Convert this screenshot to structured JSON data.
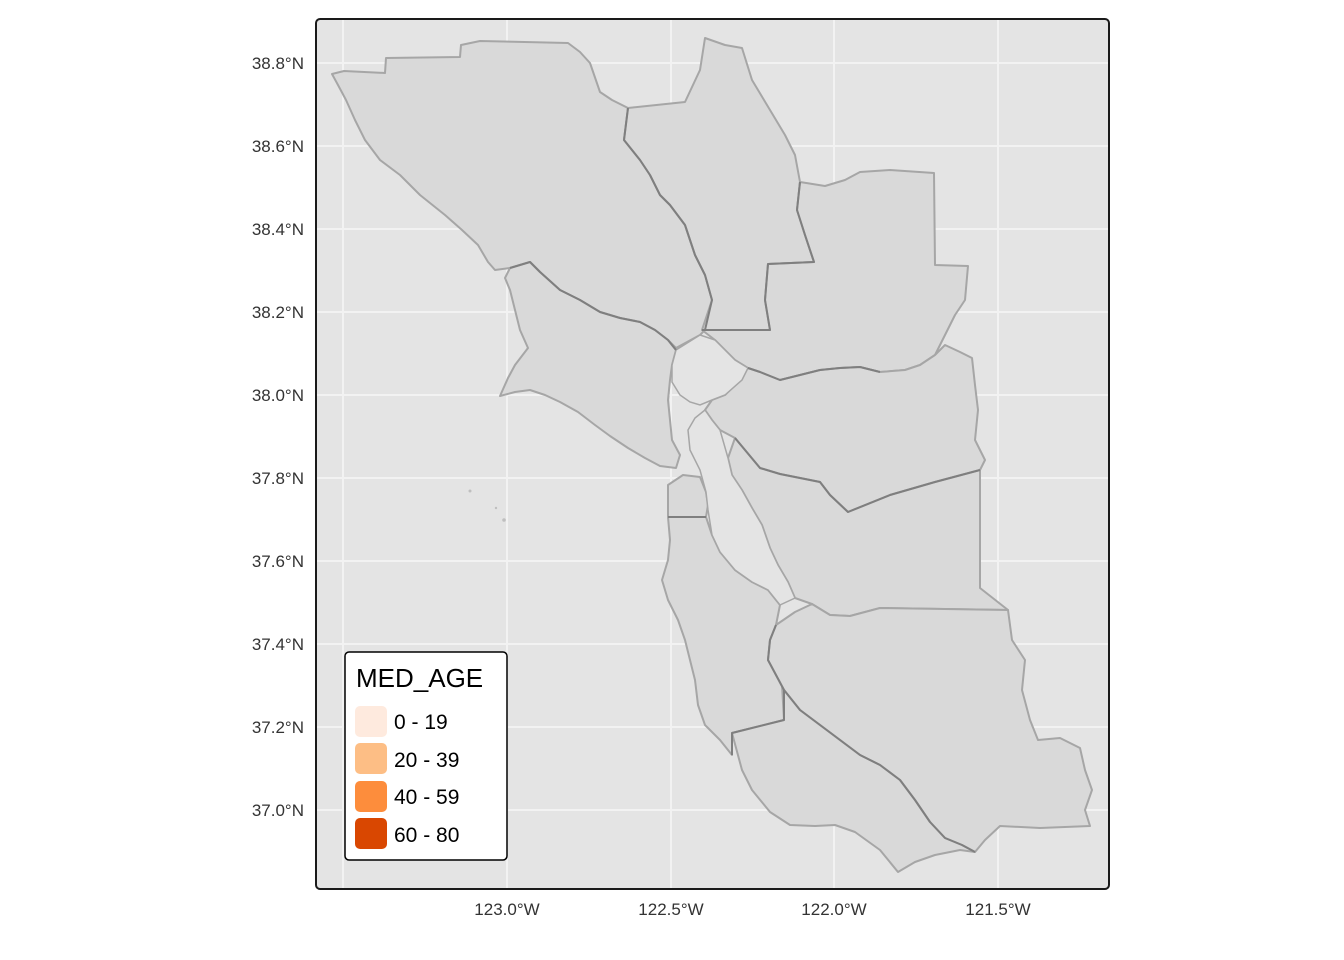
{
  "map": {
    "background": "#e4e4e4",
    "grid_color": "#f2f2f2",
    "region_fill": "#d9d9d9",
    "region_stroke": "#a6a6a6",
    "internal_border": "#7f7f7f",
    "panel_border": "#1a1a1a"
  },
  "axes": {
    "y_ticks": [
      "38.8°N",
      "38.6°N",
      "38.4°N",
      "38.2°N",
      "38.0°N",
      "37.8°N",
      "37.6°N",
      "37.4°N",
      "37.2°N",
      "37.0°N"
    ],
    "x_ticks": [
      "123.0°W",
      "122.5°W",
      "122.0°W",
      "121.5°W"
    ]
  },
  "legend": {
    "title": "MED_AGE",
    "placement": "bottom-left",
    "items": [
      {
        "label": "0 - 19",
        "color": "#feeade"
      },
      {
        "label": "20 - 39",
        "color": "#fdbe85"
      },
      {
        "label": "40 - 59",
        "color": "#fd8d3c"
      },
      {
        "label": "60 - 80",
        "color": "#d94701"
      }
    ]
  }
}
